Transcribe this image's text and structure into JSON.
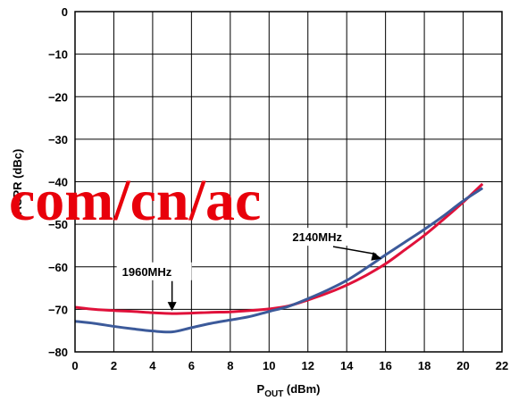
{
  "chart_data": {
    "type": "line",
    "xlabel_main": "P",
    "xlabel_sub": "OUT",
    "xlabel_unit": " (dBm)",
    "ylabel": "ACPR (dBc)",
    "xlim": [
      0,
      22
    ],
    "ylim": [
      -80,
      0
    ],
    "x_ticks": [
      "0",
      "2",
      "4",
      "6",
      "8",
      "10",
      "12",
      "14",
      "16",
      "18",
      "20",
      "22"
    ],
    "y_ticks": [
      "0",
      "−10",
      "−20",
      "−30",
      "−40",
      "−50",
      "−60",
      "−70",
      "−80"
    ],
    "grid": true,
    "series": [
      {
        "name": "1960MHz",
        "color": "#e0113a",
        "x": [
          0,
          1,
          2,
          3,
          4,
          5,
          6,
          7,
          8,
          9,
          10,
          11,
          12,
          13,
          14,
          15,
          16,
          17,
          18,
          19,
          20,
          21
        ],
        "y": [
          -69.5,
          -70,
          -70.3,
          -70.5,
          -70.8,
          -71,
          -70.9,
          -70.7,
          -70.6,
          -70.3,
          -69.9,
          -69.2,
          -67.8,
          -66.2,
          -64.3,
          -62,
          -59.3,
          -56,
          -52.6,
          -48.8,
          -44.8,
          -40.5
        ]
      },
      {
        "name": "2140MHz",
        "color": "#3c5a9a",
        "x": [
          0,
          1,
          2,
          3,
          4,
          5,
          6,
          7,
          8,
          9,
          10,
          11,
          12,
          13,
          14,
          15,
          16,
          17,
          18,
          19,
          20,
          21
        ],
        "y": [
          -72.8,
          -73.3,
          -74,
          -74.6,
          -75.1,
          -75.3,
          -74.3,
          -73.3,
          -72.5,
          -71.7,
          -70.5,
          -69.3,
          -67.5,
          -65.5,
          -63.2,
          -60.3,
          -57.2,
          -54.2,
          -51.2,
          -48,
          -44.5,
          -41.5
        ]
      }
    ],
    "annotations": [
      {
        "text": "1960MHz",
        "x": 5,
        "y": -71
      },
      {
        "text": "2140MHz",
        "x": 15.8,
        "y": -58.5
      }
    ]
  },
  "watermark": {
    "text": "com/cn/ac",
    "color": "#e8000b"
  }
}
